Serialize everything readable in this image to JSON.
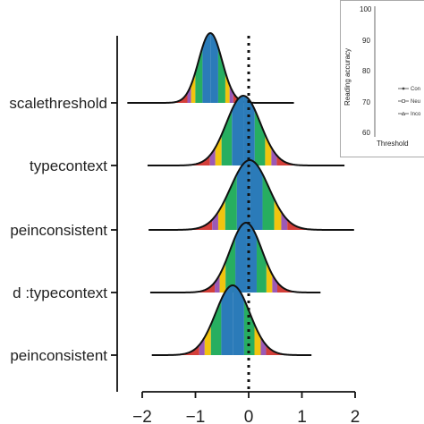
{
  "chart_data": {
    "type": "ridgeline",
    "ylabels": [
      "scalethreshold",
      "typecontext",
      "peinconsistent",
      "d :typecontext",
      "peinconsistent"
    ],
    "xticks": [
      -2,
      -1,
      0,
      1,
      2
    ],
    "xlim": [
      -2.1,
      2.1
    ],
    "reference_line": 0,
    "band_colors": [
      "#d43f3a",
      "#9b59b6",
      "#f1c40f",
      "#27ae60",
      "#2b7bb9",
      "#2b7bb9",
      "#27ae60",
      "#f1c40f",
      "#9b59b6",
      "#d43f3a"
    ],
    "band_edges": [
      -3.0,
      -1.96,
      -1.645,
      -1.28,
      -0.67,
      0,
      0.67,
      1.28,
      1.645,
      1.96,
      3.0
    ],
    "ridges": [
      {
        "mean": -0.72,
        "sd": 0.22,
        "range": [
          -2.28,
          0.85
        ]
      },
      {
        "mean": -0.1,
        "sd": 0.32,
        "range": [
          -1.9,
          1.8
        ]
      },
      {
        "mean": 0.02,
        "sd": 0.36,
        "range": [
          -1.88,
          1.98
        ]
      },
      {
        "mean": -0.05,
        "sd": 0.3,
        "range": [
          -1.85,
          1.35
        ]
      },
      {
        "mean": -0.3,
        "sd": 0.32,
        "range": [
          -1.82,
          1.18
        ]
      }
    ]
  },
  "inset": {
    "yticks": [
      "100",
      "90",
      "80",
      "70",
      "60"
    ],
    "ylabel": "Reading accuracy",
    "xlabel": "Threshold",
    "legend": [
      "Con",
      "Neu",
      "Inco"
    ]
  }
}
